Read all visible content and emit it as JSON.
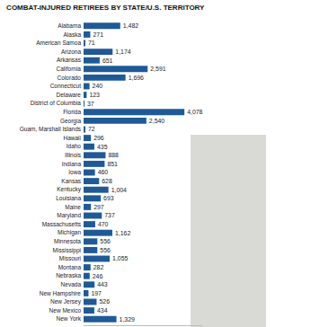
{
  "chart_data": {
    "type": "bar",
    "orientation": "horizontal",
    "title": "COMBAT-INJURED RETIREES BY STATE/U.S. TERRITORY",
    "categories": [
      "Alabama",
      "Alaska",
      "American Samoa",
      "Arizona",
      "Arkansas",
      "California",
      "Colorado",
      "Connecticut",
      "Delaware",
      "District of Columbia",
      "Florida",
      "Georgia",
      "Guam, Marshall Islands",
      "Hawaii",
      "Idaho",
      "Illinois",
      "Indiana",
      "Iowa",
      "Kansas",
      "Kentucky",
      "Louisiana",
      "Maine",
      "Maryland",
      "Massachusetts",
      "Michigan",
      "Minnesota",
      "Mississippi",
      "Missouri",
      "Montana",
      "Nebraska",
      "Nevada",
      "New Hampshire",
      "New Jersey",
      "New Mexico",
      "New York"
    ],
    "values": [
      1482,
      271,
      71,
      1174,
      651,
      2591,
      1696,
      240,
      123,
      37,
      4078,
      2540,
      72,
      296,
      435,
      888,
      851,
      460,
      628,
      1004,
      693,
      297,
      737,
      470,
      1162,
      556,
      556,
      1055,
      282,
      246,
      443,
      197,
      526,
      434,
      1329
    ],
    "value_labels": [
      "1,482",
      "271",
      "71",
      "1,174",
      "651",
      "2,591",
      "1,696",
      "240",
      "123",
      "37",
      "4,078",
      "2,540",
      "72",
      "296",
      "435",
      "888",
      "851",
      "460",
      "628",
      "1,004",
      "693",
      "297",
      "737",
      "470",
      "1,162",
      "556",
      "556",
      "1,055",
      "282",
      "246",
      "443",
      "197",
      "526",
      "434",
      "1,329"
    ],
    "color": "#1f5a96",
    "xlim": [
      0,
      4800
    ],
    "xticks": [],
    "data_labels": true,
    "tick_labels": "y",
    "grid": false
  }
}
